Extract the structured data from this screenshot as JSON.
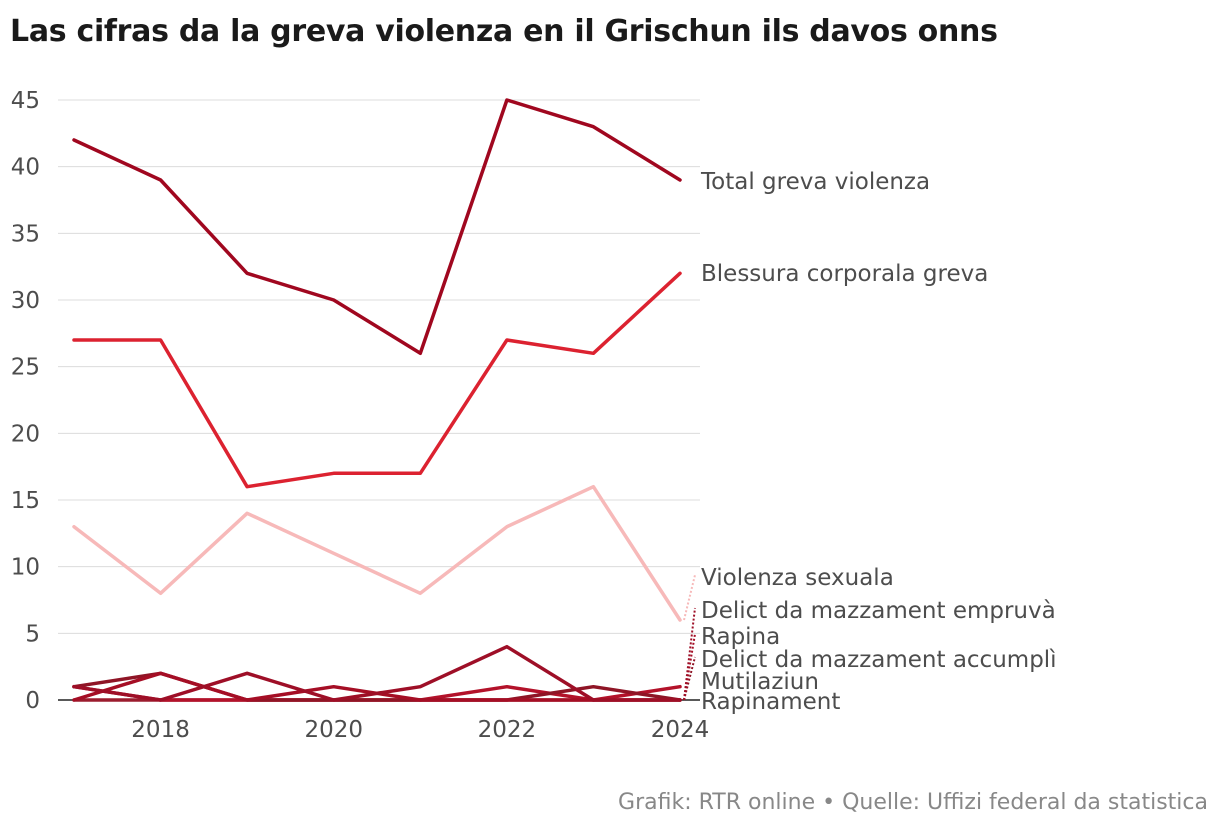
{
  "title": "Las cifras da la greva violenza en il Grischun ils davos onns",
  "footer": "Grafik: RTR online • Quelle: Uffizi federal da statistica",
  "chart_data": {
    "type": "line",
    "title": "Las cifras da la greva violenza en il Grischun ils davos onns",
    "xlabel": "",
    "ylabel": "",
    "x": [
      2017,
      2018,
      2019,
      2020,
      2021,
      2022,
      2023,
      2024
    ],
    "x_ticks": [
      2018,
      2020,
      2022,
      2024
    ],
    "y_ticks": [
      0,
      5,
      10,
      15,
      20,
      25,
      30,
      35,
      40,
      45
    ],
    "ylim": [
      0,
      45
    ],
    "grid": true,
    "series": [
      {
        "name": "Rapinament",
        "color": "#9b1c2e",
        "values": [
          0,
          0,
          0,
          0,
          0,
          0,
          0,
          0
        ]
      },
      {
        "name": "Mutilaziun",
        "color": "#b3122a",
        "values": [
          1,
          0,
          0,
          0,
          0,
          1,
          0,
          1
        ]
      },
      {
        "name": "Delict da mazzament accumplì",
        "color": "#8f1526",
        "values": [
          1,
          2,
          0,
          0,
          0,
          0,
          1,
          0
        ]
      },
      {
        "name": "Rapina",
        "color": "#a50e25",
        "values": [
          0,
          2,
          0,
          1,
          0,
          0,
          0,
          0
        ]
      },
      {
        "name": "Delict da mazzament empruvà",
        "color": "#9e0f27",
        "values": [
          1,
          0,
          2,
          0,
          1,
          4,
          0,
          0
        ]
      },
      {
        "name": "Violenza sexuala",
        "color": "#f7b9b9",
        "values": [
          13,
          8,
          14,
          11,
          8,
          13,
          16,
          6
        ]
      },
      {
        "name": "Blessura corporala greva",
        "color": "#dc2230",
        "values": [
          27,
          27,
          16,
          17,
          17,
          27,
          26,
          32
        ]
      },
      {
        "name": "Total greva violenza",
        "color": "#a0071f",
        "values": [
          42,
          39,
          32,
          30,
          26,
          45,
          43,
          39
        ]
      }
    ]
  }
}
